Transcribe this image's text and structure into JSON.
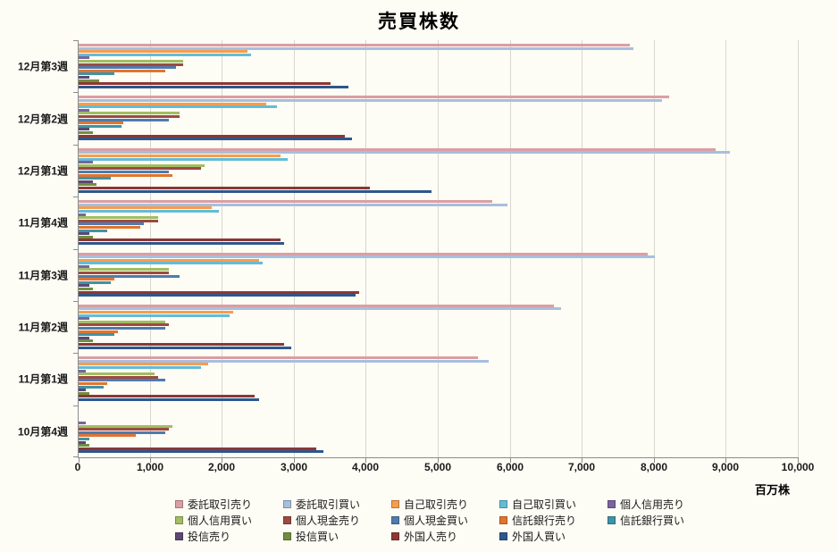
{
  "chart_data": {
    "type": "bar",
    "orientation": "horizontal",
    "title": "売買株数",
    "xlabel": "百万株",
    "xlim": [
      0,
      10000
    ],
    "grid": "vertical",
    "legend_position": "bottom",
    "xticks": [
      0,
      1000,
      2000,
      3000,
      4000,
      5000,
      6000,
      7000,
      8000,
      9000,
      10000
    ],
    "xtick_labels": [
      "0",
      "1,000",
      "2,000",
      "3,000",
      "4,000",
      "5,000",
      "6,000",
      "7,000",
      "8,000",
      "9,000",
      "10,000"
    ],
    "categories": [
      "12月第3週",
      "12月第2週",
      "12月第1週",
      "11月第4週",
      "11月第3週",
      "11月第2週",
      "11月第1週",
      "10月第4週"
    ],
    "series": [
      {
        "name": "委託取引売り",
        "color": "#d99fa4",
        "values": [
          7650,
          8200,
          8850,
          5750,
          7900,
          6600,
          5550,
          0
        ]
      },
      {
        "name": "委託取引買い",
        "color": "#a7bfde",
        "values": [
          7700,
          8100,
          9050,
          5950,
          8000,
          6700,
          5700,
          0
        ]
      },
      {
        "name": "自己取引売り",
        "color": "#f79d4d",
        "values": [
          2350,
          2600,
          2800,
          1850,
          2500,
          2150,
          1800,
          0
        ]
      },
      {
        "name": "自己取引買い",
        "color": "#63bcd6",
        "values": [
          2400,
          2750,
          2900,
          1950,
          2550,
          2100,
          1700,
          0
        ]
      },
      {
        "name": "個人信用売り",
        "color": "#7a63a0",
        "values": [
          150,
          150,
          200,
          100,
          150,
          150,
          100,
          100
        ]
      },
      {
        "name": "個人信用買い",
        "color": "#a2bd62",
        "values": [
          1450,
          1400,
          1750,
          1100,
          1250,
          1200,
          1050,
          1300
        ]
      },
      {
        "name": "個人現金売り",
        "color": "#9c4a42",
        "values": [
          1450,
          1400,
          1700,
          1100,
          1250,
          1250,
          1100,
          1250
        ]
      },
      {
        "name": "個人現金買い",
        "color": "#4f7bae",
        "values": [
          1350,
          1250,
          1250,
          900,
          1400,
          1200,
          1200,
          1200
        ]
      },
      {
        "name": "信託銀行売り",
        "color": "#e0752f",
        "values": [
          1200,
          620,
          1300,
          850,
          500,
          550,
          400,
          800
        ]
      },
      {
        "name": "信託銀行買い",
        "color": "#3e93a8",
        "values": [
          500,
          600,
          450,
          400,
          450,
          500,
          350,
          150
        ]
      },
      {
        "name": "投信売り",
        "color": "#5b4874",
        "values": [
          150,
          150,
          200,
          150,
          150,
          150,
          100,
          100
        ]
      },
      {
        "name": "投信買い",
        "color": "#6f8f3f",
        "values": [
          280,
          200,
          250,
          200,
          200,
          200,
          150,
          150
        ]
      },
      {
        "name": "外国人売り",
        "color": "#8d3733",
        "values": [
          3500,
          3700,
          4050,
          2800,
          3900,
          2850,
          2450,
          3300
        ]
      },
      {
        "name": "外国人買い",
        "color": "#2e578c",
        "values": [
          3750,
          3800,
          4900,
          2850,
          3850,
          2950,
          2500,
          3400
        ]
      }
    ]
  }
}
